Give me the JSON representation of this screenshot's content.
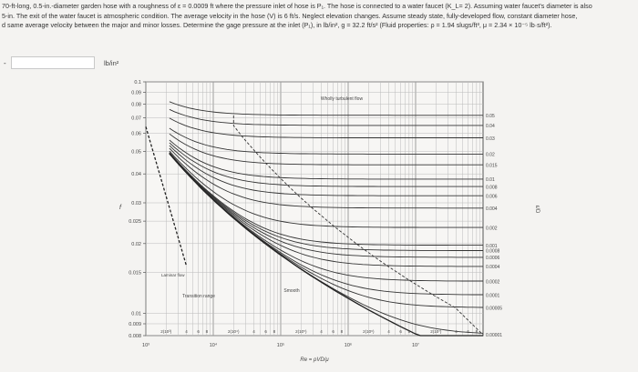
{
  "problem": {
    "lines": [
      "70-ft-long, 0.5-in.-diameter garden hose with a roughness of ε = 0.0009 ft where the pressure inlet of hose is P₁. The hose is connected to a water faucet (K_L= 2). Assuming water faucet's diameter is also",
      "5-in. The exit of the water faucet is atmospheric condition. The average velocity in the hose (V) is 6 ft/s. Neglect elevation changes. Assume steady state, fully-developed flow, constant diameter hose,",
      "d same average velocity between the major and minor losses. Determine the gage pressure at the inlet (P₁), in lb/in², g = 32.2 ft/s² (Fluid properties: ρ = 1.94 slugs/ft³, μ = 2.34 × 10⁻⁵ lb·s/ft²)."
    ]
  },
  "answer": {
    "prefix": "-",
    "value": "",
    "placeholder": "",
    "unit": "lb/in²"
  },
  "chart": {
    "y_ticks": [
      "0.1",
      "0.09",
      "0.08",
      "0.07",
      "0.06",
      "0.05",
      "0.04",
      "0.03",
      "0.025",
      "0.02",
      "0.015",
      "0.01",
      "0.009",
      "0.008"
    ],
    "f_label": "f",
    "wholly_turbulent": "Wholly turbulent flow",
    "laminar": "Laminar flow",
    "transition": "Transition range",
    "smooth": "Smooth",
    "roughness_values": [
      "0.05",
      "0.04",
      "0.03",
      "0.02",
      "0.015",
      "0.01",
      "0.008",
      "0.006",
      "0.004",
      "0.002",
      "0.001",
      "0.0008",
      "0.0006",
      "0.0004",
      "0.0002",
      "0.0001",
      "0.00005",
      "0.00001"
    ],
    "rel_rough_label": "ε/D",
    "decade_labels": [
      "10³",
      "10⁴",
      "10⁵",
      "10⁶",
      "10⁷"
    ],
    "mantissa_labels": [
      "2(10³)",
      "4",
      "6",
      "8",
      "2(10⁴)",
      "4",
      "6",
      "8",
      "2(10⁵)",
      "4",
      "6",
      "8",
      "2(10⁶)",
      "4",
      "6",
      "8",
      "2(10⁷)",
      "4",
      "6",
      "8"
    ],
    "re_label": "Re = ρVD/μ"
  }
}
